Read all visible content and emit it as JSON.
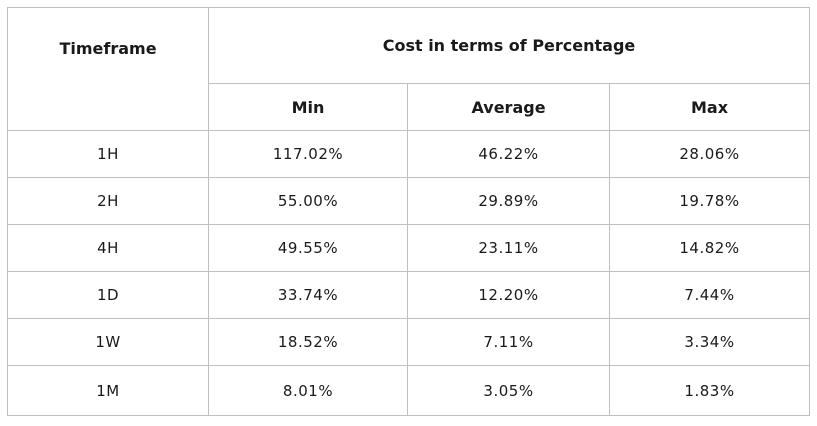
{
  "table": {
    "header": {
      "timeframe": "Timeframe",
      "group": "Cost in terms of Percentage",
      "columns": [
        "Min",
        "Average",
        "Max"
      ]
    },
    "rows": [
      {
        "timeframe": "1H",
        "min": "117.02%",
        "average": "46.22%",
        "max": "28.06%"
      },
      {
        "timeframe": "2H",
        "min": "55.00%",
        "average": "29.89%",
        "max": "19.78%"
      },
      {
        "timeframe": "4H",
        "min": "49.55%",
        "average": "23.11%",
        "max": "14.82%"
      },
      {
        "timeframe": "1D",
        "min": "33.74%",
        "average": "12.20%",
        "max": "7.44%"
      },
      {
        "timeframe": "1W",
        "min": "18.52%",
        "average": "7.11%",
        "max": "3.34%"
      },
      {
        "timeframe": "1M",
        "min": "8.01%",
        "average": "3.05%",
        "max": "1.83%"
      }
    ]
  }
}
